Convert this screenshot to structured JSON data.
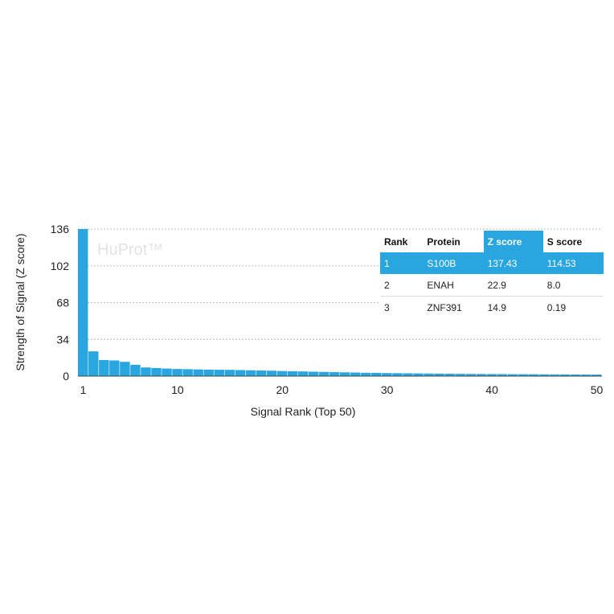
{
  "colors": {
    "bar": "#29a6df",
    "highlight": "#29a6df",
    "grid": "#bdbdbd"
  },
  "watermark": "HuProt™",
  "chart_data": {
    "type": "bar",
    "xlabel": "Signal Rank (Top 50)",
    "ylabel": "Strength of Signal (Z score)",
    "ylim": [
      0,
      136
    ],
    "yticks": [
      0,
      34,
      68,
      102,
      136
    ],
    "xticks": [
      1,
      10,
      20,
      30,
      40,
      50
    ],
    "grid": "horizontal dotted",
    "x": [
      1,
      2,
      3,
      4,
      5,
      6,
      7,
      8,
      9,
      10,
      11,
      12,
      13,
      14,
      15,
      16,
      17,
      18,
      19,
      20,
      21,
      22,
      23,
      24,
      25,
      26,
      27,
      28,
      29,
      30,
      31,
      32,
      33,
      34,
      35,
      36,
      37,
      38,
      39,
      40,
      41,
      42,
      43,
      44,
      45,
      46,
      47,
      48,
      49,
      50
    ],
    "values": [
      137.43,
      22.9,
      14.9,
      14.5,
      13.2,
      10.5,
      8.0,
      7.5,
      7.0,
      6.6,
      6.4,
      6.2,
      6.0,
      5.9,
      5.8,
      5.6,
      5.4,
      5.2,
      5.0,
      4.7,
      4.5,
      4.3,
      4.1,
      3.9,
      3.7,
      3.5,
      3.3,
      3.1,
      3.0,
      2.8,
      2.7,
      2.6,
      2.5,
      2.4,
      2.3,
      2.2,
      2.1,
      2.0,
      1.95,
      1.9,
      1.85,
      1.8,
      1.75,
      1.7,
      1.65,
      1.6,
      1.55,
      1.5,
      1.45,
      1.4
    ]
  },
  "table": {
    "headers": [
      "Rank",
      "Protein",
      "Z score",
      "S score"
    ],
    "rows": [
      [
        "1",
        "S100B",
        "137.43",
        "114.53"
      ],
      [
        "2",
        "ENAH",
        "22.9",
        "8.0"
      ],
      [
        "3",
        "ZNF391",
        "14.9",
        "0.19"
      ]
    ]
  }
}
